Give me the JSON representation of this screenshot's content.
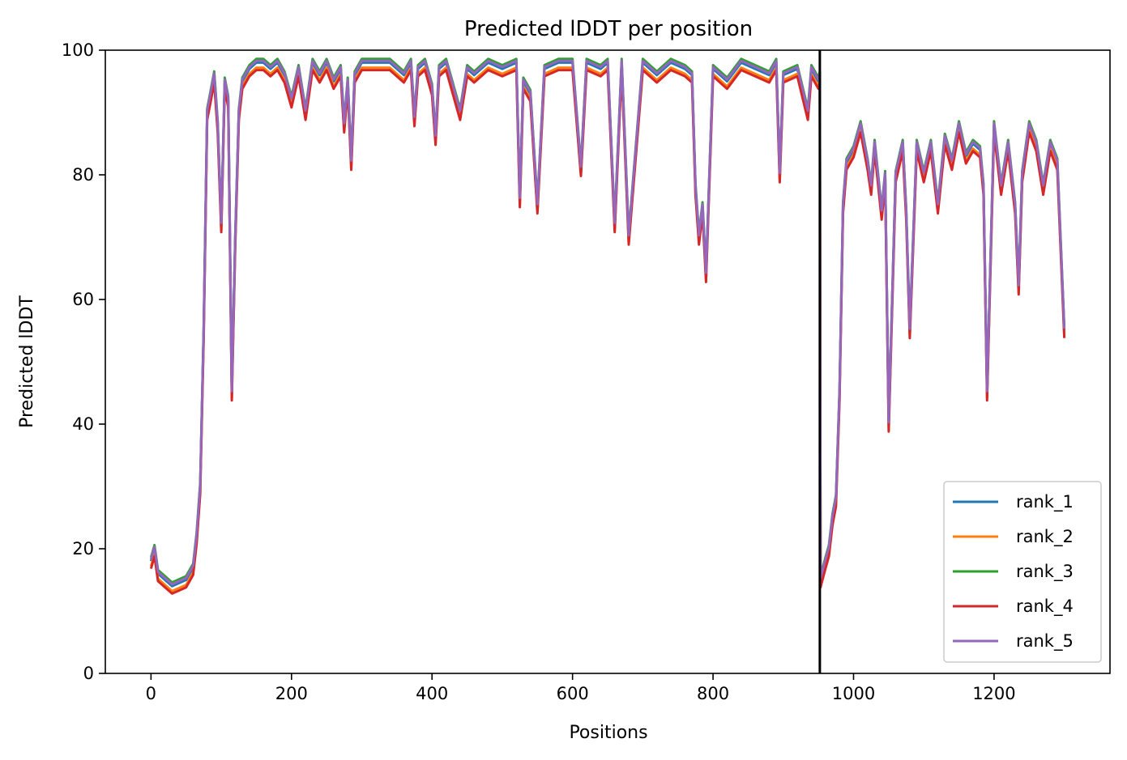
{
  "chart_data": {
    "type": "line",
    "title": "Predicted lDDT per position",
    "xlabel": "Positions",
    "ylabel": "Predicted lDDT",
    "xlim": [
      -65,
      1365
    ],
    "ylim": [
      0,
      100
    ],
    "xticks": [
      0,
      200,
      400,
      600,
      800,
      1000,
      1200
    ],
    "yticks": [
      0,
      20,
      40,
      60,
      80,
      100
    ],
    "grid": false,
    "legend_position": "lower-right",
    "vline_x": 952,
    "series": [
      {
        "name": "rank_1",
        "color": "#1f77b4",
        "offset": 0.0
      },
      {
        "name": "rank_2",
        "color": "#ff7f0e",
        "offset": -0.8
      },
      {
        "name": "rank_3",
        "color": "#2ca02c",
        "offset": 0.6
      },
      {
        "name": "rank_4",
        "color": "#d62728",
        "offset": -1.2
      },
      {
        "name": "rank_5",
        "color": "#9467bd",
        "offset": 0.3
      }
    ],
    "x": [
      0,
      5,
      10,
      20,
      30,
      40,
      50,
      60,
      65,
      70,
      75,
      80,
      85,
      90,
      95,
      100,
      105,
      110,
      115,
      120,
      125,
      130,
      140,
      150,
      160,
      170,
      180,
      190,
      200,
      210,
      220,
      230,
      240,
      250,
      260,
      270,
      275,
      280,
      285,
      290,
      300,
      320,
      340,
      360,
      370,
      375,
      380,
      390,
      400,
      405,
      410,
      420,
      440,
      450,
      460,
      480,
      500,
      520,
      525,
      530,
      540,
      550,
      560,
      580,
      600,
      612,
      620,
      640,
      650,
      660,
      670,
      680,
      700,
      720,
      740,
      760,
      770,
      775,
      780,
      785,
      790,
      800,
      820,
      840,
      860,
      880,
      890,
      895,
      900,
      920,
      935,
      940,
      950,
      952,
      953,
      960,
      965,
      970,
      975,
      980,
      985,
      990,
      1000,
      1010,
      1020,
      1025,
      1030,
      1040,
      1045,
      1050,
      1060,
      1070,
      1075,
      1080,
      1090,
      1100,
      1110,
      1120,
      1130,
      1140,
      1150,
      1160,
      1170,
      1180,
      1185,
      1190,
      1200,
      1210,
      1220,
      1230,
      1235,
      1240,
      1250,
      1260,
      1270,
      1280,
      1290,
      1300
    ],
    "values": [
      18,
      20,
      16,
      15,
      14,
      14.5,
      15,
      17,
      22,
      30,
      55,
      90,
      93,
      96,
      88,
      72,
      95,
      92,
      45,
      70,
      90,
      95,
      97,
      98,
      98,
      97,
      98,
      96,
      92,
      97,
      90,
      98,
      96,
      98,
      95,
      97,
      88,
      95,
      82,
      96,
      98,
      98,
      98,
      96,
      98,
      89,
      97,
      98,
      94,
      86,
      97,
      98,
      90,
      97,
      96,
      98,
      97,
      98,
      76,
      95,
      93,
      75,
      97,
      98,
      98,
      81,
      98,
      97,
      98,
      72,
      98,
      70,
      98,
      96,
      98,
      97,
      96,
      78,
      70,
      75,
      64,
      97,
      95,
      98,
      97,
      96,
      98,
      80,
      96,
      97,
      90,
      97,
      95,
      96,
      15,
      18,
      20,
      25,
      28,
      45,
      75,
      82,
      84,
      88,
      82,
      78,
      85,
      74,
      80,
      40,
      80,
      85,
      74,
      55,
      85,
      80,
      85,
      75,
      86,
      82,
      88,
      83,
      85,
      84,
      78,
      45,
      88,
      78,
      85,
      75,
      62,
      80,
      88,
      85,
      78,
      85,
      82,
      55
    ]
  }
}
